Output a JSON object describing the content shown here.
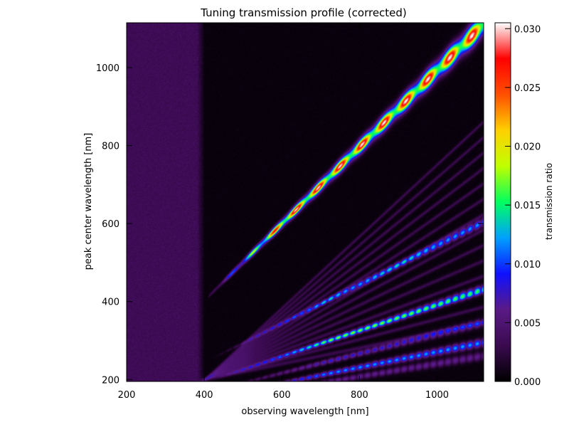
{
  "chart_data": {
    "type": "heatmap",
    "title": "Tuning transmission profile (corrected)",
    "xlabel": "observing wavelength [nm]",
    "ylabel": "peak center wavelength [nm]",
    "xlim": [
      200,
      1120
    ],
    "ylim": [
      195,
      1115
    ],
    "xticks": [
      "200",
      "400",
      "600",
      "800",
      "1000"
    ],
    "yticks": [
      "200",
      "400",
      "600",
      "800",
      "1000"
    ],
    "xtick_values": [
      200,
      400,
      600,
      800,
      1000
    ],
    "ytick_values": [
      200,
      400,
      600,
      800,
      1000
    ],
    "colorbar": {
      "label": "transmission ratio",
      "range": [
        0,
        0.0305
      ],
      "ticks": [
        "0.000",
        "0.005",
        "0.010",
        "0.015",
        "0.020",
        "0.025",
        "0.030"
      ],
      "tick_values": [
        0,
        0.005,
        0.01,
        0.015,
        0.02,
        0.025,
        0.03
      ],
      "colormap": [
        "#000000",
        "#3a0a4f",
        "#5a1a86",
        "#1010ff",
        "#00a0ff",
        "#00ff60",
        "#c0ff00",
        "#ffd000",
        "#ff5000",
        "#ff0000",
        "#ffffff"
      ]
    },
    "background": {
      "dim_band_x": [
        200,
        380
      ],
      "dim_band_value": 0.0035,
      "dark_region_value": 0.0003
    },
    "features": [
      {
        "kind": "main-ridge",
        "x_start": 470,
        "x_end": 1110,
        "peak_value": 0.03
      },
      {
        "kind": "harmonic",
        "order": 2,
        "x_start": 420,
        "x_end": 1110,
        "peak_value": 0.012
      },
      {
        "kind": "harmonic",
        "order": 3,
        "x_start": 420,
        "x_end": 1110,
        "peak_value": 0.015
      },
      {
        "kind": "harmonic",
        "order": 4,
        "x_start": 450,
        "x_end": 1110,
        "peak_value": 0.008
      },
      {
        "kind": "harmonic",
        "order": 5,
        "x_start": 450,
        "x_end": 1110,
        "peak_value": 0.012
      }
    ]
  }
}
